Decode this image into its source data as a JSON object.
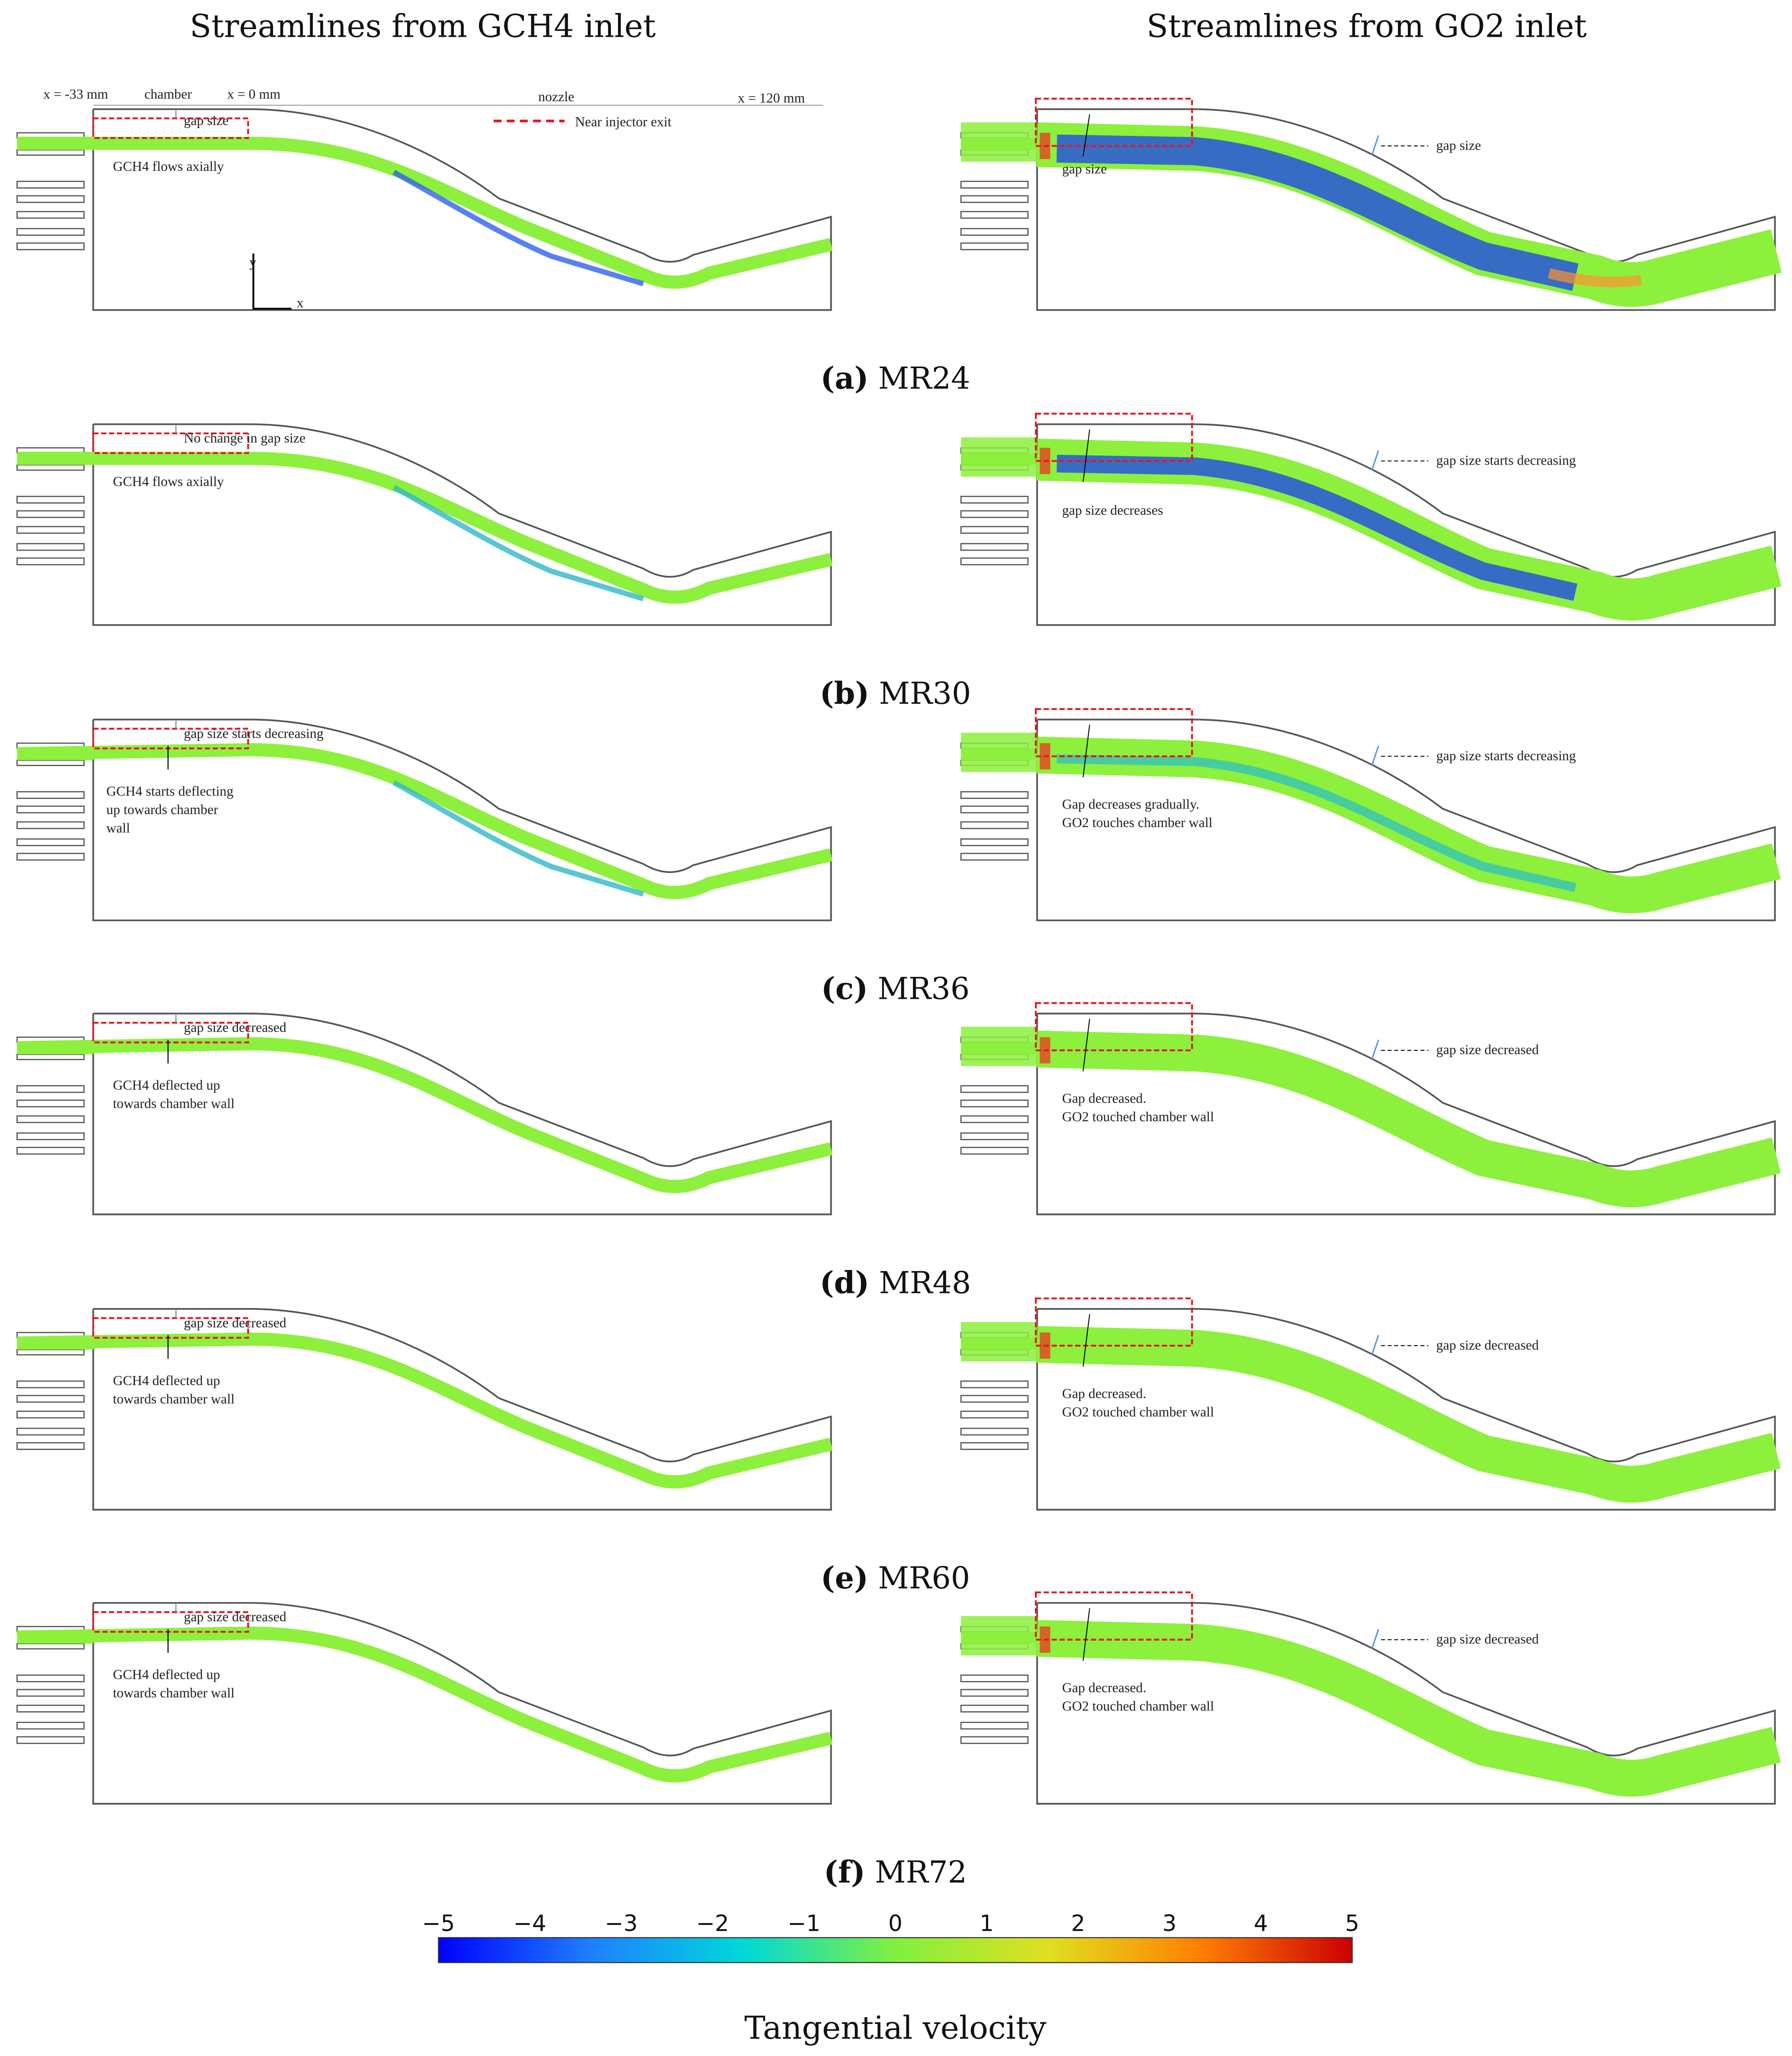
{
  "headers": {
    "left": "Streamlines from GCH4 inlet",
    "right": "Streamlines from GO2 inlet"
  },
  "legend_label": "Near injector exit",
  "dimensions": {
    "x_start": "x = -33 mm",
    "chamber": "chamber",
    "x_zero": "x = 0 mm",
    "nozzle": "nozzle",
    "x_end": "x = 120 mm"
  },
  "axes": {
    "y": "y",
    "x": "x"
  },
  "rows": [
    {
      "letter": "(a)",
      "case": "MR24",
      "left": [
        "gap size",
        "GCH4 flows axially"
      ],
      "right": [
        "gap size",
        "gap size"
      ]
    },
    {
      "letter": "(b)",
      "case": "MR30",
      "left": [
        "No change in gap size",
        "GCH4 flows axially"
      ],
      "right": [
        "gap size starts decreasing",
        "gap size decreases"
      ]
    },
    {
      "letter": "(c)",
      "case": "MR36",
      "left": [
        "gap size starts decreasing",
        "GCH4 starts deflecting",
        "up towards chamber",
        "wall"
      ],
      "right": [
        "gap size starts decreasing",
        "Gap decreases gradually.",
        "GO2 touches chamber wall"
      ]
    },
    {
      "letter": "(d)",
      "case": "MR48",
      "left": [
        "gap size decreased",
        "GCH4 deflected up",
        "towards chamber wall"
      ],
      "right": [
        "gap size decreased",
        "Gap decreased.",
        "GO2 touched chamber wall"
      ]
    },
    {
      "letter": "(e)",
      "case": "MR60",
      "left": [
        "gap size decreased",
        "GCH4 deflected up",
        "towards chamber wall"
      ],
      "right": [
        "gap size decreased",
        "Gap decreased.",
        "GO2 touched chamber wall"
      ]
    },
    {
      "letter": "(f)",
      "case": "MR72",
      "left": [
        "gap size decreased",
        "GCH4 deflected up",
        "towards chamber wall"
      ],
      "right": [
        "gap size decreased",
        "Gap decreased.",
        "GO2 touched chamber wall"
      ]
    }
  ],
  "colorbar": {
    "title": "Tangential velocity",
    "ticks": [
      "−5",
      "−4",
      "−3",
      "−2",
      "−1",
      "0",
      "1",
      "2",
      "3",
      "4",
      "5"
    ],
    "range": [
      -5,
      5
    ],
    "colors": [
      "#0000ff",
      "#1e7fff",
      "#00d8d8",
      "#80f040",
      "#e0e020",
      "#ff8000",
      "#cc0000"
    ]
  },
  "colors": {
    "streamline": "#8cf03c",
    "highlight_box": "#e8141c",
    "wall": "#555555"
  }
}
